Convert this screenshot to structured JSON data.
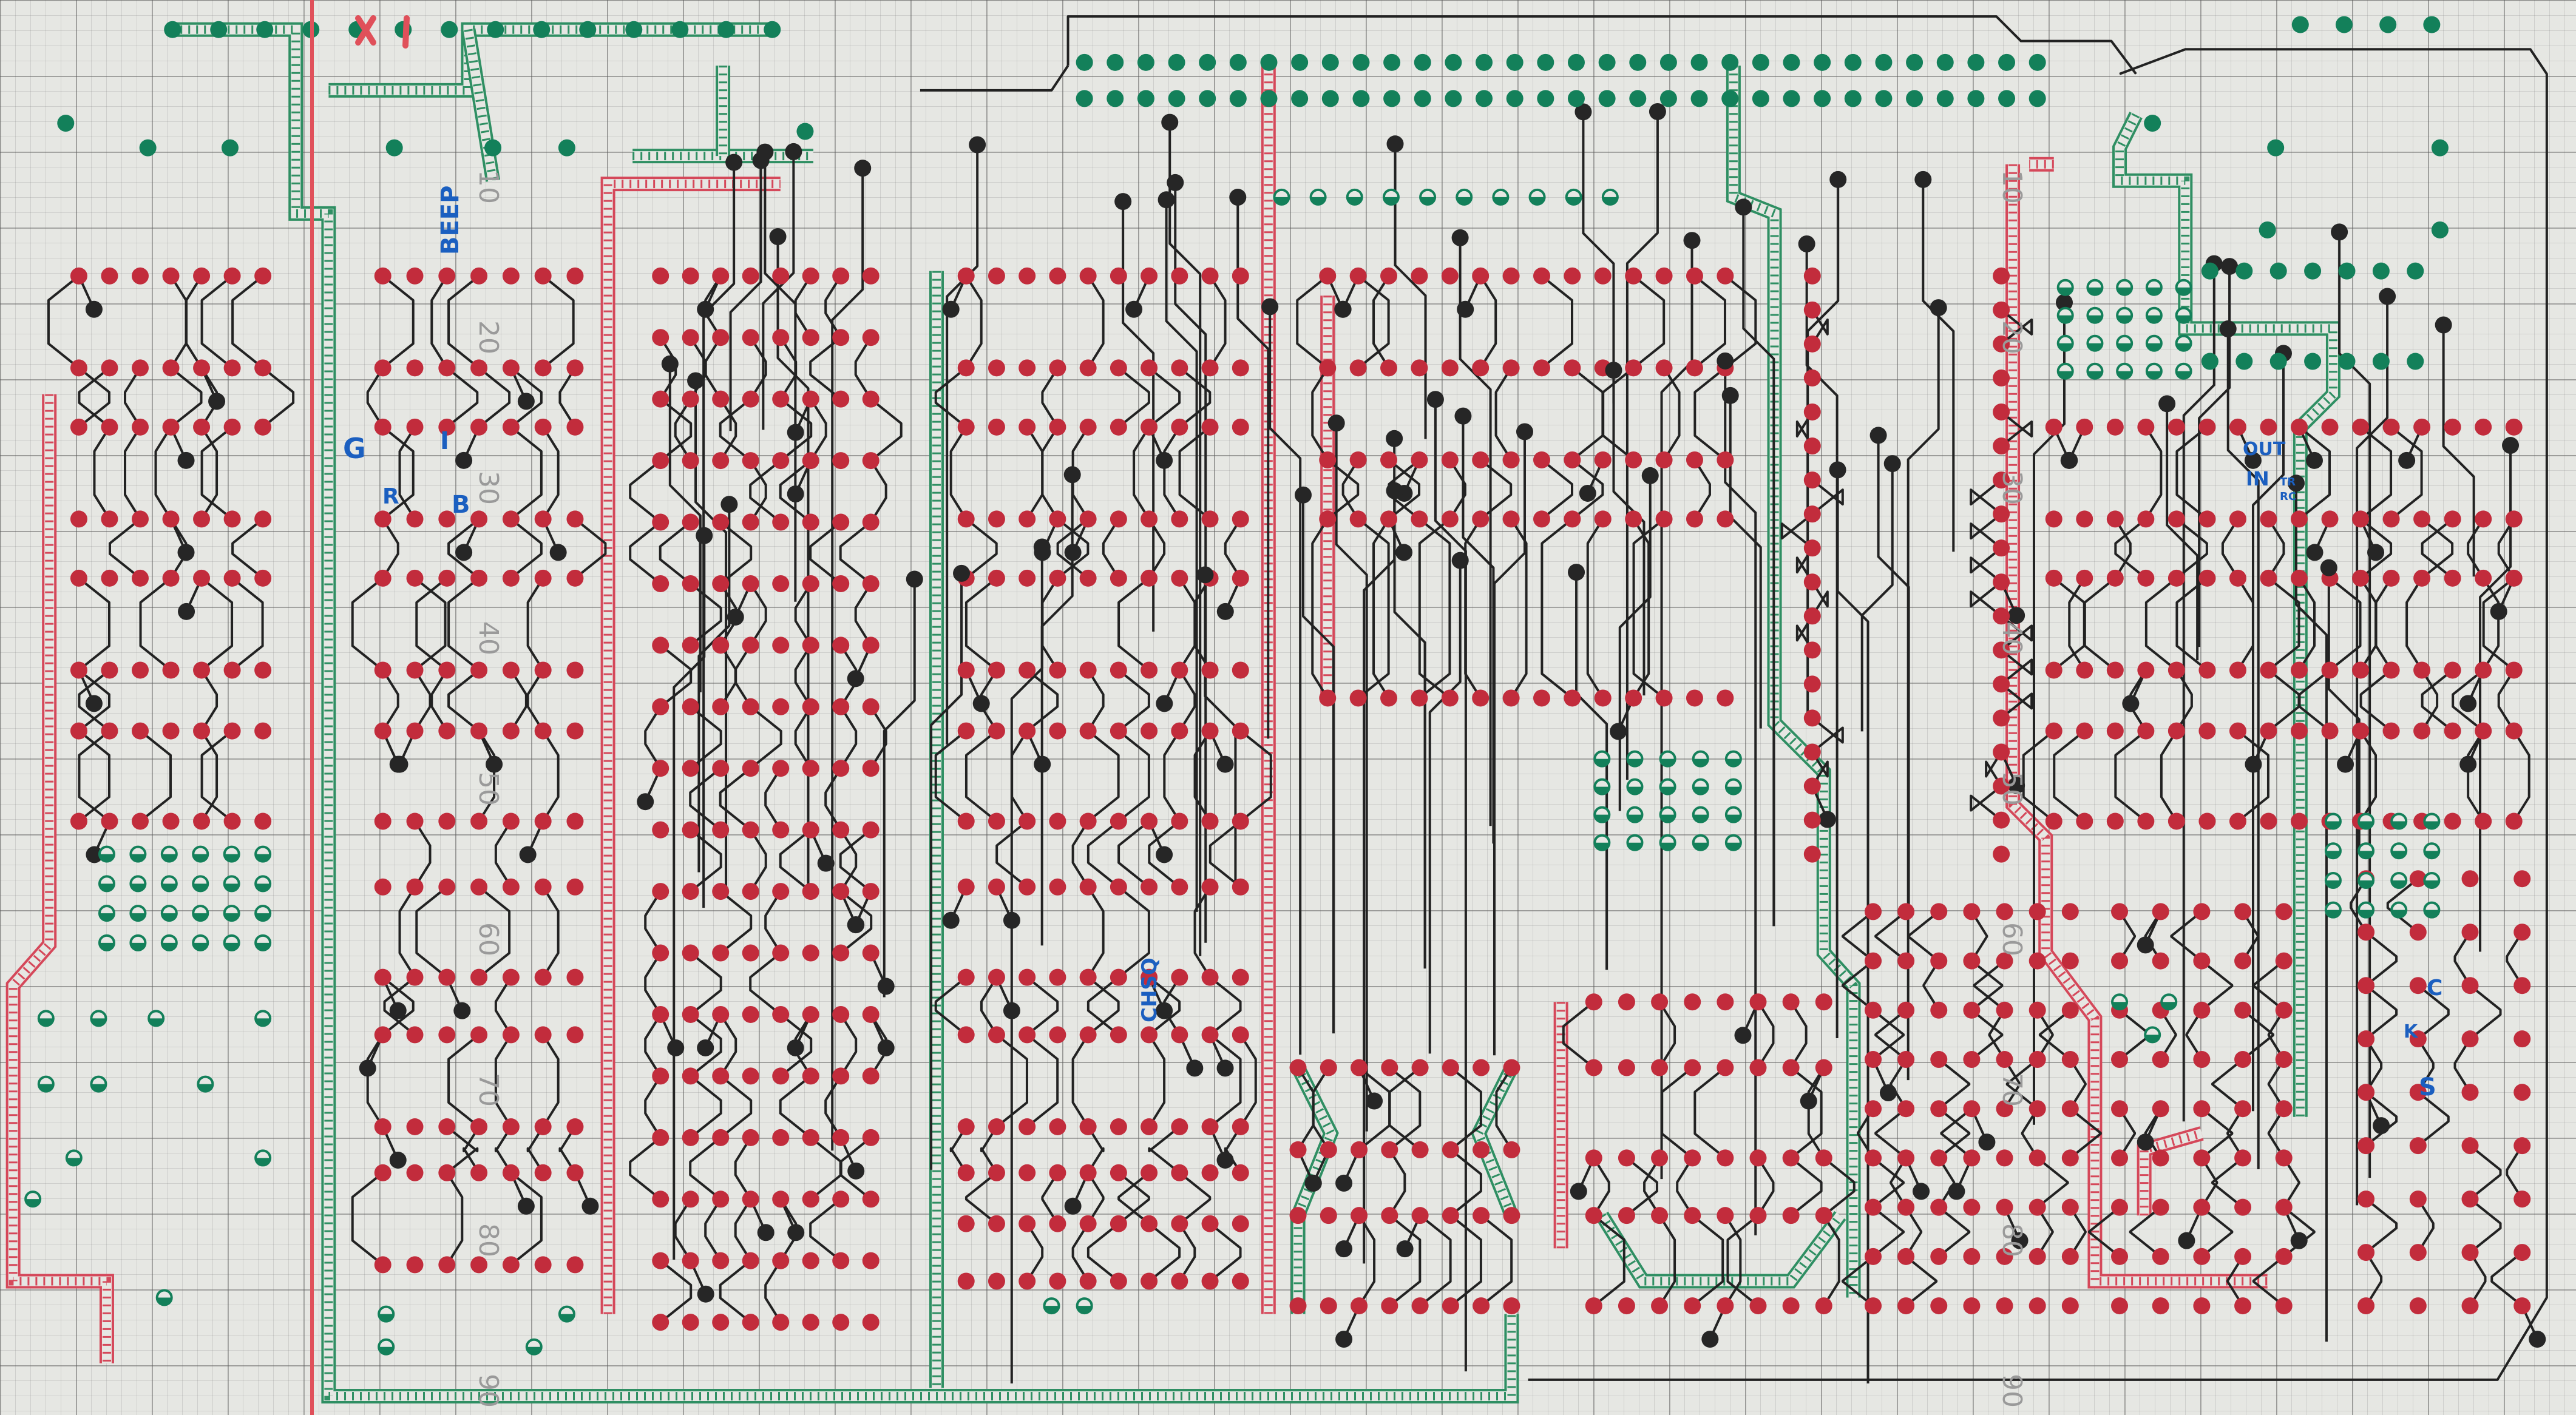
{
  "colors": {
    "paper": "#e6e7e3",
    "pad_red": "#c22c3c",
    "pad_green": "#13805a",
    "pad_black": "#262626",
    "trace": "#222222",
    "bus_red": "#d5485a",
    "bus_green": "#2f8f63",
    "label_blue": "#1b5fc0",
    "mark_red": "#e0505a"
  },
  "labels": {
    "beep": "BEEP",
    "g": "G",
    "i": "I",
    "r": "R",
    "b": "B",
    "chsq": "CHSQ",
    "out": "OUT",
    "in": "IN",
    "tr": "TR",
    "rc": "RC",
    "c": "C",
    "k": "K",
    "s": "S"
  },
  "scale_numbers": [
    "10",
    "20",
    "30",
    "40",
    "50",
    "60",
    "70",
    "80",
    "90"
  ]
}
